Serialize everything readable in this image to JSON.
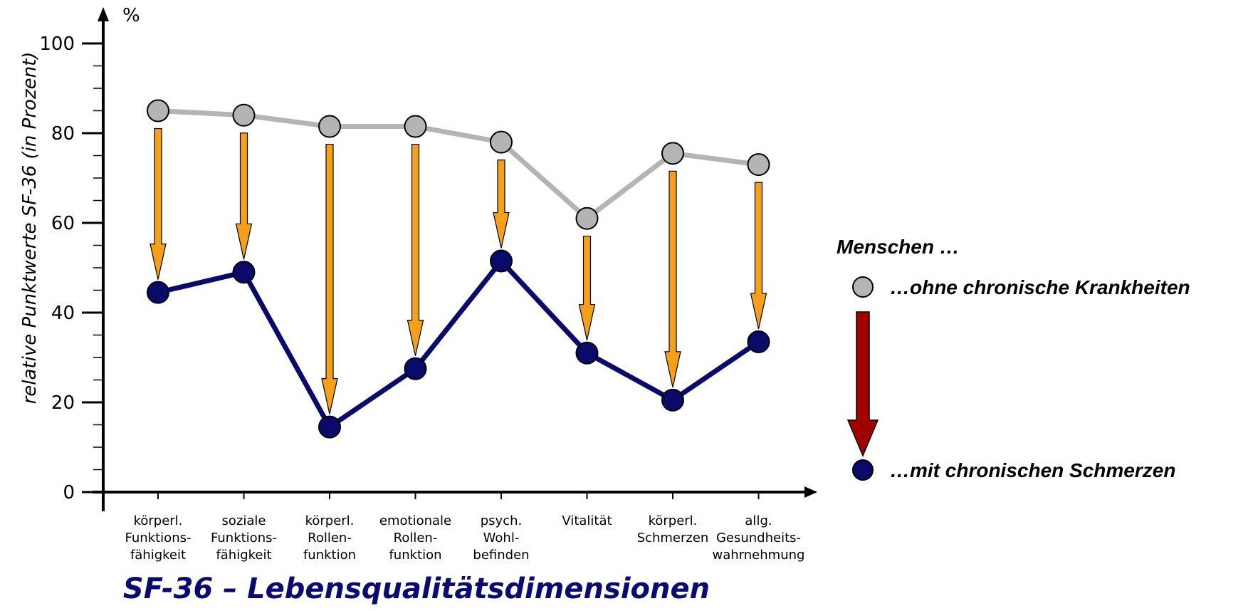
{
  "chart_data": {
    "type": "line",
    "title": "SF-36 – Lebensqualitätsdimensionen",
    "unit_label": "%",
    "ylabel": "relative Punktwerte SF-36  (in Prozent)",
    "ylim": [
      0,
      100
    ],
    "yticks": [
      0,
      20,
      40,
      60,
      80,
      100
    ],
    "categories": [
      [
        "körperl.",
        "Funktions-",
        "fähigkeit"
      ],
      [
        "soziale",
        "Funktions-",
        "fähigkeit"
      ],
      [
        "körperl.",
        "Rollen-",
        "funktion"
      ],
      [
        "emotionale",
        "Rollen-",
        "funktion"
      ],
      [
        "psych.",
        "Wohl-",
        "befinden"
      ],
      [
        "Vitalität"
      ],
      [
        "körperl.",
        "Schmerzen"
      ],
      [
        "allg.",
        "Gesundheits-",
        "wahrnehmung"
      ]
    ],
    "series": [
      {
        "name": "…ohne chronische Krankheiten",
        "color": "#b4b4b4",
        "values": [
          85,
          84,
          81.5,
          81.5,
          78,
          61,
          75.5,
          73
        ]
      },
      {
        "name": "…mit chronischen Schmerzen",
        "color": "#0a0a6a",
        "values": [
          44.5,
          49,
          14.5,
          27.5,
          51.5,
          31,
          20.5,
          33.5
        ]
      }
    ],
    "legend_title": "Menschen …",
    "arrow_color": "#f5a01a",
    "legend_arrow_color": "#a00000",
    "grid": false
  }
}
